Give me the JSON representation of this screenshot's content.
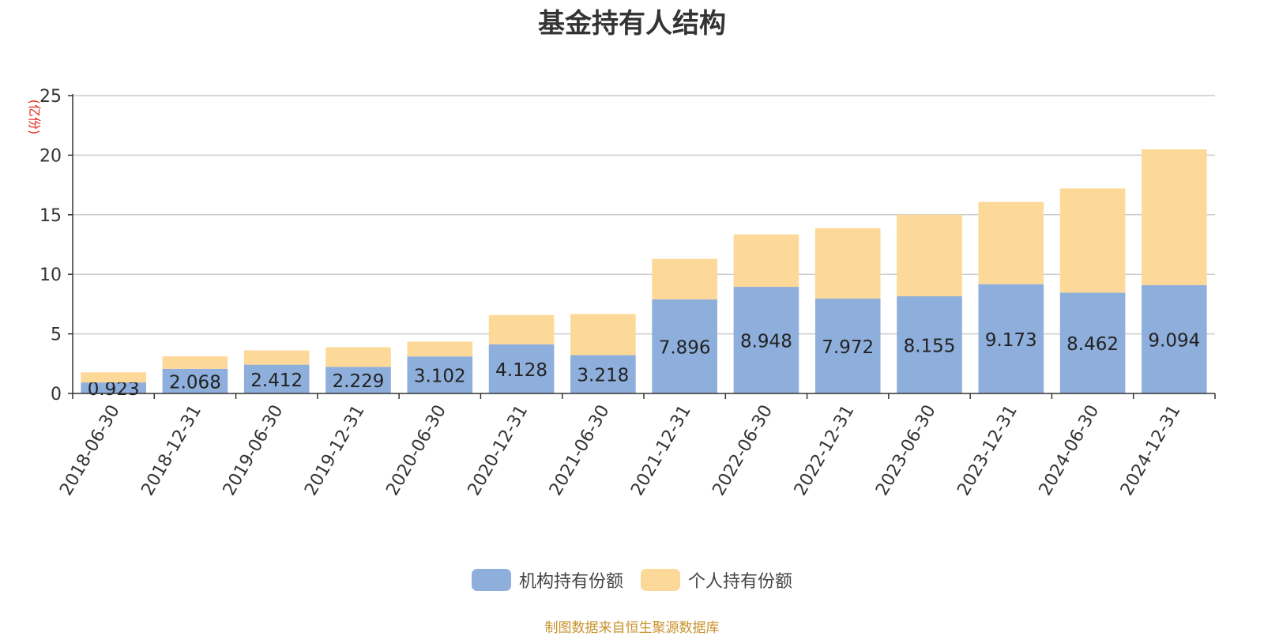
{
  "chart_data": {
    "type": "bar",
    "stacked": true,
    "title": "基金持有人结构",
    "ylabel": "(亿份)",
    "xlabel": "",
    "ylim": [
      0,
      25
    ],
    "yticks": [
      0,
      5,
      10,
      15,
      20,
      25
    ],
    "grid": true,
    "legend_position": "bottom",
    "categories": [
      "2018-06-30",
      "2018-12-31",
      "2019-06-30",
      "2019-12-31",
      "2020-06-30",
      "2020-12-31",
      "2021-06-30",
      "2021-12-31",
      "2022-06-30",
      "2022-12-31",
      "2023-06-30",
      "2023-12-31",
      "2024-06-30",
      "2024-12-31"
    ],
    "series": [
      {
        "name": "机构持有份额",
        "color": "#8eaedc",
        "show_labels": true,
        "values": [
          0.923,
          2.068,
          2.412,
          2.229,
          3.102,
          4.128,
          3.218,
          7.896,
          8.948,
          7.972,
          8.155,
          9.173,
          8.462,
          9.094
        ]
      },
      {
        "name": "个人持有份额",
        "color": "#fdd999",
        "show_labels": false,
        "values": [
          0.85,
          1.05,
          1.2,
          1.65,
          1.25,
          2.45,
          3.45,
          3.4,
          4.4,
          5.9,
          6.85,
          6.9,
          8.75,
          11.4
        ]
      }
    ]
  },
  "source_note": "制图数据来自恒生聚源数据库"
}
